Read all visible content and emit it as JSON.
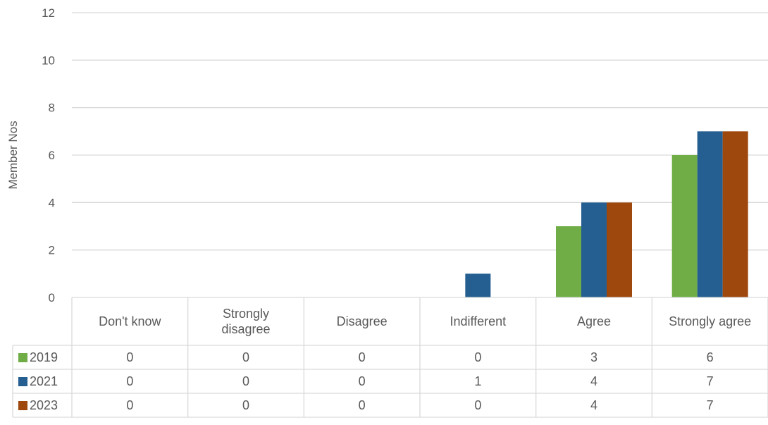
{
  "chart_data": {
    "type": "bar",
    "title": "",
    "xlabel": "",
    "ylabel": "Member Nos",
    "ylim": [
      0,
      12
    ],
    "yticks": [
      0,
      2,
      4,
      6,
      8,
      10,
      12
    ],
    "grid": true,
    "legend": "data-table-left",
    "data_table": true,
    "categories": [
      "Don't know",
      "Strongly disagree",
      "Disagree",
      "Indifferent",
      "Agree",
      "Strongly agree"
    ],
    "category_lines": [
      [
        "Don't know"
      ],
      [
        "Strongly",
        "disagree"
      ],
      [
        "Disagree"
      ],
      [
        "Indifferent"
      ],
      [
        "Agree"
      ],
      [
        "Strongly agree"
      ]
    ],
    "series": [
      {
        "name": "2019",
        "color": "#70AD47",
        "values": [
          0,
          0,
          0,
          0,
          3,
          6
        ]
      },
      {
        "name": "2021",
        "color": "#255E91",
        "values": [
          0,
          0,
          0,
          1,
          4,
          7
        ]
      },
      {
        "name": "2023",
        "color": "#9E480E",
        "values": [
          0,
          0,
          0,
          0,
          4,
          7
        ]
      }
    ]
  }
}
